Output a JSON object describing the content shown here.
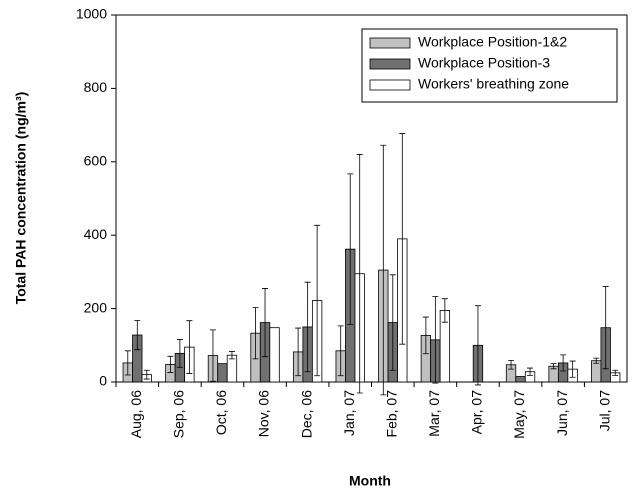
{
  "chart_data": {
    "type": "bar",
    "xlabel": "Month",
    "ylabel": "Total PAH concentration (ng/m³)",
    "categories": [
      "Aug, 06",
      "Sep, 06",
      "Oct, 06",
      "Nov, 06",
      "Dec, 06",
      "Jan, 07",
      "Feb, 07",
      "Mar, 07",
      "Apr, 07",
      "May, 07",
      "Jun, 07",
      "Jul, 07"
    ],
    "series": [
      {
        "name": "Workplace Position-1&2",
        "color": "#c0c0c0",
        "values": [
          52,
          48,
          72,
          133,
          82,
          85,
          305,
          127,
          null,
          47,
          43,
          58
        ],
        "errors": [
          33,
          22,
          70,
          70,
          65,
          68,
          340,
          50,
          null,
          12,
          7,
          7
        ]
      },
      {
        "name": "Workplace Position-3",
        "color": "#707070",
        "values": [
          128,
          78,
          50,
          162,
          150,
          362,
          162,
          115,
          100,
          15,
          52,
          148
        ],
        "errors": [
          40,
          38,
          0,
          93,
          122,
          205,
          130,
          118,
          108,
          0,
          22,
          112
        ]
      },
      {
        "name": "Workers' breathing zone",
        "color": "#ffffff",
        "values": [
          20,
          95,
          73,
          148,
          222,
          295,
          390,
          195,
          null,
          28,
          35,
          25
        ],
        "errors": [
          12,
          72,
          10,
          0,
          205,
          325,
          287,
          32,
          null,
          10,
          22,
          7
        ]
      }
    ],
    "ylim": [
      0,
      1000
    ],
    "yticks": [
      0,
      200,
      400,
      600,
      800,
      1000
    ],
    "legend": "upper right",
    "grid": false
  }
}
